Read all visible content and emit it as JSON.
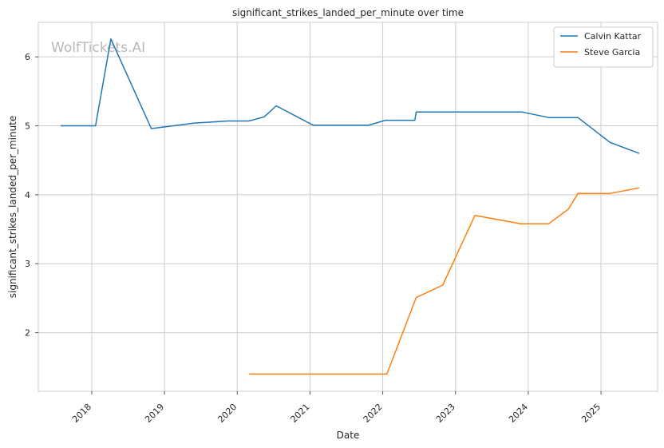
{
  "chart_data": {
    "type": "line",
    "title": "significant_strikes_landed_per_minute over time",
    "xlabel": "Date",
    "ylabel": "significant_strikes_landed_per_minute",
    "watermark": "WolfTickets.AI",
    "x_ticks": [
      "2018",
      "2019",
      "2020",
      "2021",
      "2022",
      "2023",
      "2024",
      "2025"
    ],
    "y_ticks": [
      2,
      3,
      4,
      5,
      6
    ],
    "xlim": [
      "2017-04-08",
      "2025-10-12"
    ],
    "ylim": [
      1.15,
      6.5
    ],
    "grid": true,
    "legend_position": "top-right",
    "series": [
      {
        "name": "Calvin Kattar",
        "color": "#1f77b4",
        "points": [
          [
            "2017-07-29",
            5.0
          ],
          [
            "2018-01-20",
            5.0
          ],
          [
            "2018-04-07",
            6.26
          ],
          [
            "2018-10-27",
            4.96
          ],
          [
            "2019-01-19",
            4.99
          ],
          [
            "2019-06-01",
            5.04
          ],
          [
            "2019-11-15",
            5.07
          ],
          [
            "2020-02-29",
            5.07
          ],
          [
            "2020-05-16",
            5.13
          ],
          [
            "2020-07-15",
            5.29
          ],
          [
            "2021-01-16",
            5.01
          ],
          [
            "2021-10-23",
            5.01
          ],
          [
            "2022-01-15",
            5.08
          ],
          [
            "2022-06-11",
            5.08
          ],
          [
            "2022-06-18",
            5.2
          ],
          [
            "2023-12-02",
            5.2
          ],
          [
            "2024-04-13",
            5.12
          ],
          [
            "2024-09-07",
            5.12
          ],
          [
            "2025-02-15",
            4.76
          ],
          [
            "2025-07-12",
            4.6
          ]
        ]
      },
      {
        "name": "Steve Garcia",
        "color": "#ff7f0e",
        "points": [
          [
            "2020-02-29",
            1.4
          ],
          [
            "2022-01-22",
            1.4
          ],
          [
            "2022-06-18",
            2.51
          ],
          [
            "2022-10-29",
            2.69
          ],
          [
            "2023-04-08",
            3.7
          ],
          [
            "2023-11-25",
            3.58
          ],
          [
            "2024-04-13",
            3.58
          ],
          [
            "2024-07-20",
            3.79
          ],
          [
            "2024-09-07",
            4.02
          ],
          [
            "2025-02-15",
            4.02
          ],
          [
            "2025-07-12",
            4.1
          ]
        ]
      }
    ]
  }
}
